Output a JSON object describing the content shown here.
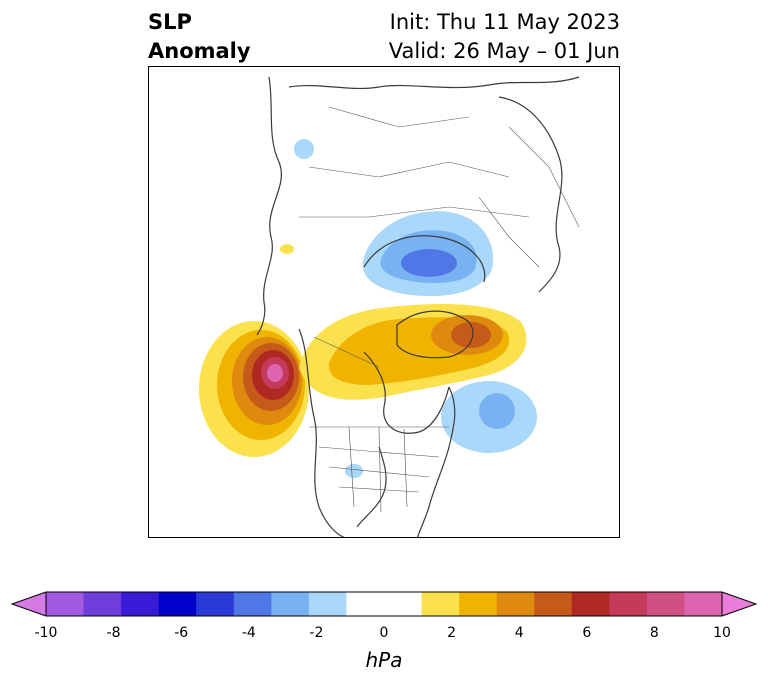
{
  "title": {
    "left_line1": "SLP",
    "left_line2": "Anomaly",
    "init": "Init: Thu 11 May 2023",
    "valid": "Valid: 26 May – 01 Jun"
  },
  "colorbar": {
    "units": "hPa",
    "ticks": [
      "-10",
      "-8",
      "-6",
      "-4",
      "-2",
      "0",
      "2",
      "4",
      "6",
      "8",
      "10"
    ],
    "colors": [
      "#d67ae6",
      "#a05ae0",
      "#6e3ddc",
      "#3a1ad4",
      "#0000cc",
      "#2a3ad8",
      "#4f78e6",
      "#78b2f2",
      "#aad8fa",
      "#ffffff",
      "#ffffff",
      "#fce14e",
      "#f0b400",
      "#de8a0e",
      "#c65a18",
      "#b02822",
      "#c43a5a",
      "#d05084",
      "#dc64b0",
      "#ea7cdc"
    ],
    "extend": "both"
  },
  "map_data": {
    "projection": "polar-stereographic-north",
    "field": "sea level pressure anomaly",
    "anomalies": [
      {
        "sign": "positive",
        "region": "northeast Pacific off western North America",
        "peak_hpa": 8
      },
      {
        "sign": "positive",
        "region": "Canadian Arctic Archipelago to Greenland",
        "peak_hpa": 5
      },
      {
        "sign": "negative",
        "region": "Siberian Arctic / Kara-Laptev seas",
        "peak_hpa": -5
      },
      {
        "sign": "negative",
        "region": "western North Atlantic",
        "peak_hpa": -3
      },
      {
        "sign": "negative",
        "region": "Tibetan Plateau",
        "peak_hpa": -2
      },
      {
        "sign": "negative",
        "region": "southern Great Plains",
        "peak_hpa": -2
      }
    ]
  }
}
